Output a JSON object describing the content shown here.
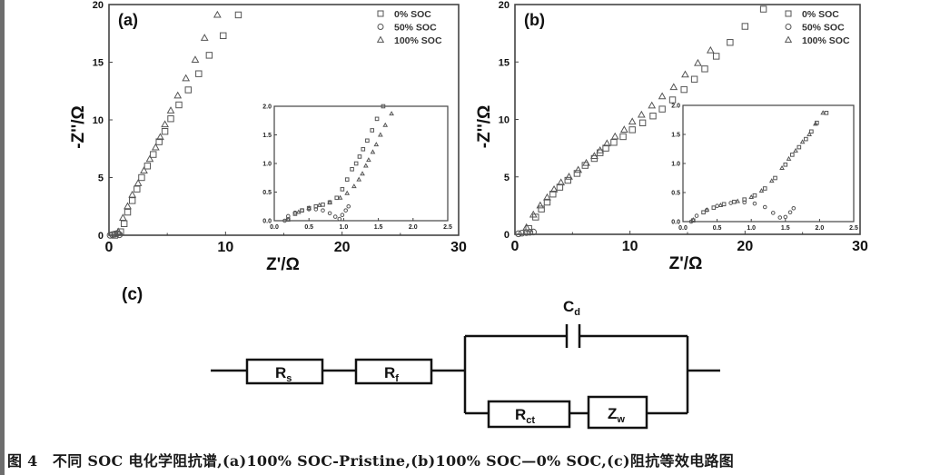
{
  "chart_data": [
    {
      "type": "scatter",
      "panel_label": "(a)",
      "xlabel": "Z'/Ω",
      "ylabel": "-Z''/Ω",
      "xlim": [
        0,
        30
      ],
      "ylim": [
        0,
        20
      ],
      "xticks": [
        0,
        10,
        20,
        30
      ],
      "yticks": [
        0,
        5,
        10,
        15,
        20
      ],
      "legend": {
        "placement": "top-right",
        "entries": [
          "0% SOC",
          "50% SOC",
          "100% SOC"
        ]
      },
      "series": [
        {
          "name": "0% SOC",
          "marker": "square",
          "points": [
            [
              0.5,
              0
            ],
            [
              1,
              0.3
            ],
            [
              1.3,
              1
            ],
            [
              1.6,
              2
            ],
            [
              2,
              3
            ],
            [
              2.4,
              4
            ],
            [
              2.8,
              5
            ],
            [
              3.3,
              6
            ],
            [
              3.8,
              7
            ],
            [
              4.3,
              8.1
            ],
            [
              4.8,
              9
            ],
            [
              5.3,
              10.1
            ],
            [
              6,
              11.3
            ],
            [
              6.8,
              12.6
            ],
            [
              7.7,
              14
            ],
            [
              8.6,
              15.6
            ],
            [
              9.8,
              17.3
            ],
            [
              11.1,
              19.1
            ]
          ]
        },
        {
          "name": "50% SOC",
          "marker": "circle",
          "points": [
            [
              0.1,
              0
            ],
            [
              0.3,
              0.05
            ],
            [
              0.5,
              0.1
            ],
            [
              0.7,
              0.15
            ],
            [
              0.9,
              0.05
            ]
          ]
        },
        {
          "name": "100% SOC",
          "marker": "triangle",
          "points": [
            [
              0.8,
              0.3
            ],
            [
              1.2,
              1.5
            ],
            [
              1.6,
              2.5
            ],
            [
              2,
              3.5
            ],
            [
              2.5,
              4.5
            ],
            [
              3,
              5.6
            ],
            [
              3.5,
              6.6
            ],
            [
              4,
              7.6
            ],
            [
              4.4,
              8.5
            ],
            [
              4.8,
              9.6
            ],
            [
              5.3,
              10.8
            ],
            [
              5.9,
              12.1
            ],
            [
              6.6,
              13.6
            ],
            [
              7.4,
              15.2
            ],
            [
              8.2,
              17.1
            ],
            [
              9.3,
              19.1
            ]
          ]
        }
      ],
      "inset": {
        "xlim": [
          0,
          2.5
        ],
        "ylim": [
          0,
          2.0
        ],
        "xticks": [
          "0.0",
          "0.5",
          "1.0",
          "1.5",
          "2.0",
          "2.5"
        ],
        "yticks": [
          "0.0",
          "0.5",
          "1.0",
          "1.5",
          "2.0"
        ],
        "series": [
          {
            "name": "0% SOC",
            "marker": "square",
            "points": [
              [
                0.2,
                0.02
              ],
              [
                0.3,
                0.12
              ],
              [
                0.4,
                0.18
              ],
              [
                0.5,
                0.22
              ],
              [
                0.6,
                0.25
              ],
              [
                0.7,
                0.28
              ],
              [
                0.8,
                0.32
              ],
              [
                0.9,
                0.4
              ],
              [
                0.98,
                0.55
              ],
              [
                1.05,
                0.72
              ],
              [
                1.12,
                0.9
              ],
              [
                1.18,
                1.0
              ],
              [
                1.23,
                1.12
              ],
              [
                1.28,
                1.25
              ],
              [
                1.34,
                1.4
              ],
              [
                1.41,
                1.58
              ],
              [
                1.48,
                1.78
              ],
              [
                1.57,
                2.0
              ]
            ]
          },
          {
            "name": "50% SOC",
            "marker": "circle",
            "points": [
              [
                0.15,
                0
              ],
              [
                0.2,
                0.08
              ],
              [
                0.3,
                0.14
              ],
              [
                0.4,
                0.18
              ],
              [
                0.5,
                0.2
              ],
              [
                0.6,
                0.2
              ],
              [
                0.7,
                0.18
              ],
              [
                0.8,
                0.13
              ],
              [
                0.88,
                0.07
              ],
              [
                0.94,
                0.03
              ],
              [
                0.98,
                0.1
              ],
              [
                1.03,
                0.18
              ],
              [
                1.07,
                0.25
              ]
            ]
          },
          {
            "name": "100% SOC",
            "marker": "triangle",
            "points": [
              [
                0.2,
                0.02
              ],
              [
                0.35,
                0.15
              ],
              [
                0.5,
                0.22
              ],
              [
                0.65,
                0.27
              ],
              [
                0.8,
                0.32
              ],
              [
                0.95,
                0.4
              ],
              [
                1.05,
                0.48
              ],
              [
                1.15,
                0.6
              ],
              [
                1.22,
                0.72
              ],
              [
                1.27,
                0.82
              ],
              [
                1.32,
                0.96
              ],
              [
                1.36,
                1.06
              ],
              [
                1.42,
                1.2
              ],
              [
                1.47,
                1.33
              ],
              [
                1.53,
                1.5
              ],
              [
                1.6,
                1.67
              ],
              [
                1.69,
                1.87
              ]
            ]
          }
        ]
      }
    },
    {
      "type": "scatter",
      "panel_label": "(b)",
      "xlabel": "Z'/Ω",
      "ylabel": "-Z''/Ω",
      "xlim": [
        0,
        30
      ],
      "ylim": [
        0,
        20
      ],
      "xticks": [
        0,
        10,
        20,
        30
      ],
      "yticks": [
        0,
        5,
        10,
        15,
        20
      ],
      "legend": {
        "placement": "top-right",
        "entries": [
          "0% SOC",
          "50% SOC",
          "100% SOC"
        ]
      },
      "series": [
        {
          "name": "0% SOC",
          "marker": "square",
          "points": [
            [
              1.2,
              0.5
            ],
            [
              1.8,
              1.5
            ],
            [
              2.3,
              2.2
            ],
            [
              2.8,
              2.8
            ],
            [
              3.3,
              3.5
            ],
            [
              3.9,
              4.1
            ],
            [
              4.6,
              4.7
            ],
            [
              5.4,
              5.3
            ],
            [
              6.1,
              6
            ],
            [
              6.9,
              6.6
            ],
            [
              7.4,
              7.1
            ],
            [
              7.9,
              7.5
            ],
            [
              8.6,
              8
            ],
            [
              9.4,
              8.5
            ],
            [
              10.2,
              9.1
            ],
            [
              11.1,
              9.7
            ],
            [
              12,
              10.3
            ],
            [
              12.8,
              10.9
            ],
            [
              13.7,
              11.7
            ],
            [
              14.7,
              12.6
            ],
            [
              15.6,
              13.5
            ],
            [
              16.5,
              14.4
            ],
            [
              17.5,
              15.5
            ],
            [
              18.7,
              16.7
            ],
            [
              20,
              18.1
            ],
            [
              21.6,
              19.6
            ]
          ]
        },
        {
          "name": "50% SOC",
          "marker": "circle",
          "points": [
            [
              0.3,
              0.05
            ],
            [
              0.6,
              0.1
            ],
            [
              1,
              0.15
            ],
            [
              1.3,
              0.18
            ],
            [
              1.6,
              0.2
            ]
          ]
        },
        {
          "name": "100% SOC",
          "marker": "triangle",
          "points": [
            [
              1,
              0.6
            ],
            [
              1.6,
              1.7
            ],
            [
              2.2,
              2.5
            ],
            [
              2.8,
              3.2
            ],
            [
              3.4,
              3.9
            ],
            [
              4,
              4.5
            ],
            [
              4.7,
              5
            ],
            [
              5.5,
              5.6
            ],
            [
              6.2,
              6.2
            ],
            [
              6.9,
              6.8
            ],
            [
              7.4,
              7.3
            ],
            [
              8,
              7.9
            ],
            [
              8.7,
              8.5
            ],
            [
              9.5,
              9.1
            ],
            [
              10.2,
              9.8
            ],
            [
              11,
              10.4
            ],
            [
              11.9,
              11.2
            ],
            [
              12.8,
              12
            ],
            [
              13.8,
              12.8
            ],
            [
              14.8,
              13.9
            ],
            [
              15.9,
              14.9
            ],
            [
              17,
              16
            ]
          ]
        }
      ],
      "inset": {
        "xlim": [
          0,
          2.5
        ],
        "ylim": [
          0,
          2.0
        ],
        "xticks": [
          "0.0",
          "0.5",
          "1.0",
          "1.5",
          "2.0",
          "2.5"
        ],
        "yticks": [
          "0.0",
          "0.5",
          "1.0",
          "1.5",
          "2.0"
        ],
        "series": [
          {
            "name": "0% SOC",
            "marker": "square",
            "points": [
              [
                0.15,
                0.02
              ],
              [
                0.3,
                0.16
              ],
              [
                0.45,
                0.24
              ],
              [
                0.6,
                0.3
              ],
              [
                0.75,
                0.34
              ],
              [
                0.9,
                0.38
              ],
              [
                1.05,
                0.45
              ],
              [
                1.2,
                0.57
              ],
              [
                1.35,
                0.75
              ],
              [
                1.5,
                0.98
              ],
              [
                1.6,
                1.15
              ],
              [
                1.7,
                1.28
              ],
              [
                1.8,
                1.42
              ],
              [
                1.88,
                1.55
              ],
              [
                1.96,
                1.7
              ],
              [
                2.1,
                1.87
              ]
            ]
          },
          {
            "name": "50% SOC",
            "marker": "circle",
            "points": [
              [
                0.12,
                0
              ],
              [
                0.2,
                0.1
              ],
              [
                0.35,
                0.2
              ],
              [
                0.5,
                0.27
              ],
              [
                0.7,
                0.32
              ],
              [
                0.9,
                0.33
              ],
              [
                1.05,
                0.31
              ],
              [
                1.2,
                0.25
              ],
              [
                1.32,
                0.15
              ],
              [
                1.42,
                0.07
              ],
              [
                1.5,
                0.08
              ],
              [
                1.57,
                0.16
              ],
              [
                1.62,
                0.23
              ]
            ]
          },
          {
            "name": "100% SOC",
            "marker": "triangle",
            "points": [
              [
                0.15,
                0.03
              ],
              [
                0.35,
                0.2
              ],
              [
                0.55,
                0.28
              ],
              [
                0.8,
                0.35
              ],
              [
                1.0,
                0.42
              ],
              [
                1.15,
                0.53
              ],
              [
                1.3,
                0.7
              ],
              [
                1.45,
                0.92
              ],
              [
                1.55,
                1.08
              ],
              [
                1.65,
                1.22
              ],
              [
                1.75,
                1.37
              ],
              [
                1.85,
                1.5
              ],
              [
                1.94,
                1.68
              ],
              [
                2.05,
                1.87
              ]
            ]
          }
        ]
      }
    }
  ],
  "circuit": {
    "panel_label": "(c)",
    "rs": {
      "main": "R",
      "sub": "s"
    },
    "rf": {
      "main": "R",
      "sub": "f"
    },
    "cd": {
      "main": "C",
      "sub": "d"
    },
    "rct": {
      "main": "R",
      "sub": "ct"
    },
    "zw": {
      "main": "Z",
      "sub": "w"
    }
  },
  "caption": "图 4　不同 SOC 电化学阻抗谱,(a)100% SOC-Pristine,(b)100% SOC—0% SOC,(c)阻抗等效电路图"
}
